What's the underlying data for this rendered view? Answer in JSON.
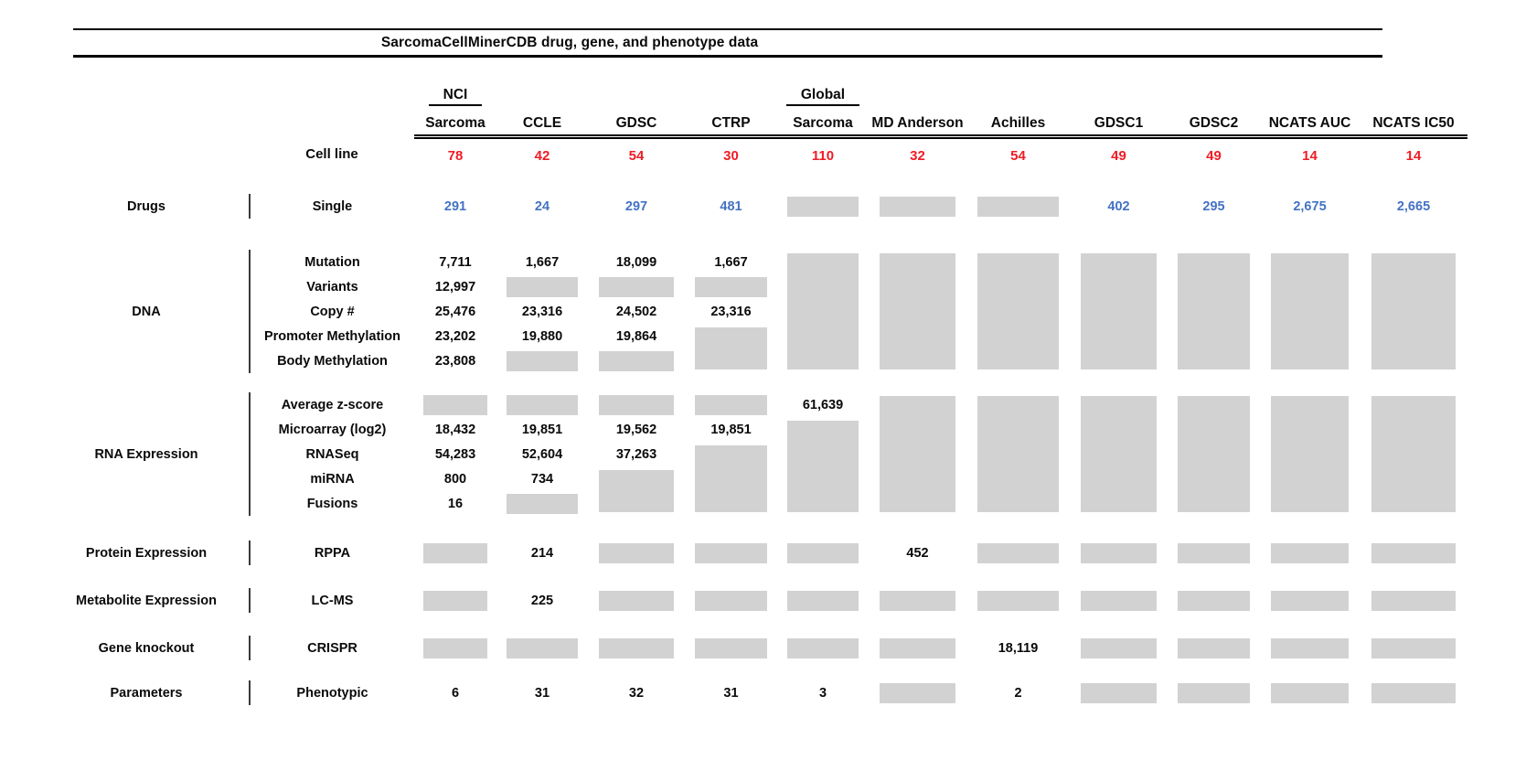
{
  "title": "SarcomaCellMinerCDB drug, gene, and phenotype data",
  "colors": {
    "red": "#ee1c25",
    "blue": "#4472c4",
    "box": "#d2d2d2",
    "rule": "#000000"
  },
  "columns": [
    {
      "over": "NCI",
      "name": "Sarcoma"
    },
    {
      "name": "CCLE"
    },
    {
      "name": "GDSC"
    },
    {
      "name": "CTRP"
    },
    {
      "over": "Global",
      "name": "Sarcoma"
    },
    {
      "name": "MD Anderson"
    },
    {
      "name": "Achilles"
    },
    {
      "name": "GDSC1"
    },
    {
      "name": "GDSC2"
    },
    {
      "name": "NCATS AUC"
    },
    {
      "name": "NCATS IC50"
    }
  ],
  "cell_line": {
    "label": "Cell line",
    "counts": [
      "78",
      "42",
      "54",
      "30",
      "110",
      "32",
      "54",
      "49",
      "49",
      "14",
      "14"
    ]
  },
  "sections": [
    {
      "category": "Drugs",
      "rows": [
        {
          "label": "Single",
          "color": "blue",
          "cells": [
            {
              "t": "v",
              "v": "291"
            },
            {
              "t": "v",
              "v": "24"
            },
            {
              "t": "v",
              "v": "297"
            },
            {
              "t": "v",
              "v": "481"
            },
            {
              "t": "b"
            },
            {
              "t": "b"
            },
            {
              "t": "b"
            },
            {
              "t": "v",
              "v": "402"
            },
            {
              "t": "v",
              "v": "295"
            },
            {
              "t": "v",
              "v": "2,675"
            },
            {
              "t": "v",
              "v": "2,665"
            }
          ]
        }
      ]
    },
    {
      "category": "DNA",
      "rows": [
        {
          "label": "Mutation",
          "cells": [
            {
              "t": "v",
              "v": "7,711"
            },
            {
              "t": "v",
              "v": "1,667"
            },
            {
              "t": "v",
              "v": "18,099"
            },
            {
              "t": "v",
              "v": "1,667"
            },
            {
              "t": "b",
              "n": 5
            },
            {
              "t": "b",
              "n": 5
            },
            {
              "t": "b",
              "n": 5
            },
            {
              "t": "b",
              "n": 5
            },
            {
              "t": "b",
              "n": 5
            },
            {
              "t": "b",
              "n": 5
            },
            {
              "t": "b",
              "n": 5
            }
          ]
        },
        {
          "label": "Variants",
          "cells": [
            {
              "t": "v",
              "v": "12,997"
            },
            {
              "t": "b"
            },
            {
              "t": "b"
            },
            {
              "t": "b"
            },
            {
              "t": "s"
            },
            {
              "t": "s"
            },
            {
              "t": "s"
            },
            {
              "t": "s"
            },
            {
              "t": "s"
            },
            {
              "t": "s"
            },
            {
              "t": "s"
            }
          ]
        },
        {
          "label": "Copy #",
          "cells": [
            {
              "t": "v",
              "v": "25,476"
            },
            {
              "t": "v",
              "v": "23,316"
            },
            {
              "t": "v",
              "v": "24,502"
            },
            {
              "t": "v",
              "v": "23,316"
            },
            {
              "t": "s"
            },
            {
              "t": "s"
            },
            {
              "t": "s"
            },
            {
              "t": "s"
            },
            {
              "t": "s"
            },
            {
              "t": "s"
            },
            {
              "t": "s"
            }
          ]
        },
        {
          "label": "Promoter Methylation",
          "cells": [
            {
              "t": "v",
              "v": "23,202"
            },
            {
              "t": "v",
              "v": "19,880"
            },
            {
              "t": "v",
              "v": "19,864"
            },
            {
              "t": "b",
              "n": 2
            },
            {
              "t": "s"
            },
            {
              "t": "s"
            },
            {
              "t": "s"
            },
            {
              "t": "s"
            },
            {
              "t": "s"
            },
            {
              "t": "s"
            },
            {
              "t": "s"
            }
          ]
        },
        {
          "label": "Body Methylation",
          "cells": [
            {
              "t": "v",
              "v": "23,808"
            },
            {
              "t": "b"
            },
            {
              "t": "b"
            },
            {
              "t": "s"
            },
            {
              "t": "s"
            },
            {
              "t": "s"
            },
            {
              "t": "s"
            },
            {
              "t": "s"
            },
            {
              "t": "s"
            },
            {
              "t": "s"
            },
            {
              "t": "s"
            }
          ]
        }
      ]
    },
    {
      "category": "RNA Expression",
      "rows": [
        {
          "label": "Average z-score",
          "cells": [
            {
              "t": "b"
            },
            {
              "t": "b"
            },
            {
              "t": "b"
            },
            {
              "t": "b"
            },
            {
              "t": "v",
              "v": "61,639"
            },
            {
              "t": "b",
              "n": 5
            },
            {
              "t": "b",
              "n": 5
            },
            {
              "t": "b",
              "n": 5
            },
            {
              "t": "b",
              "n": 5
            },
            {
              "t": "b",
              "n": 5
            },
            {
              "t": "b",
              "n": 5
            }
          ]
        },
        {
          "label": "Microarray (log2)",
          "cells": [
            {
              "t": "v",
              "v": "18,432"
            },
            {
              "t": "v",
              "v": "19,851"
            },
            {
              "t": "v",
              "v": "19,562"
            },
            {
              "t": "v",
              "v": "19,851"
            },
            {
              "t": "b",
              "n": 4
            },
            {
              "t": "s"
            },
            {
              "t": "s"
            },
            {
              "t": "s"
            },
            {
              "t": "s"
            },
            {
              "t": "s"
            },
            {
              "t": "s"
            }
          ]
        },
        {
          "label": "RNASeq",
          "cells": [
            {
              "t": "v",
              "v": "54,283"
            },
            {
              "t": "v",
              "v": "52,604"
            },
            {
              "t": "v",
              "v": "37,263"
            },
            {
              "t": "b",
              "n": 3
            },
            {
              "t": "s"
            },
            {
              "t": "s"
            },
            {
              "t": "s"
            },
            {
              "t": "s"
            },
            {
              "t": "s"
            },
            {
              "t": "s"
            },
            {
              "t": "s"
            }
          ]
        },
        {
          "label": "miRNA",
          "cells": [
            {
              "t": "v",
              "v": "800"
            },
            {
              "t": "v",
              "v": "734"
            },
            {
              "t": "b",
              "n": 2
            },
            {
              "t": "s"
            },
            {
              "t": "s"
            },
            {
              "t": "s"
            },
            {
              "t": "s"
            },
            {
              "t": "s"
            },
            {
              "t": "s"
            },
            {
              "t": "s"
            },
            {
              "t": "s"
            }
          ]
        },
        {
          "label": "Fusions",
          "cells": [
            {
              "t": "v",
              "v": "16"
            },
            {
              "t": "b"
            },
            {
              "t": "s"
            },
            {
              "t": "s"
            },
            {
              "t": "s"
            },
            {
              "t": "s"
            },
            {
              "t": "s"
            },
            {
              "t": "s"
            },
            {
              "t": "s"
            },
            {
              "t": "s"
            },
            {
              "t": "s"
            }
          ]
        }
      ]
    },
    {
      "category": "Protein Expression",
      "rows": [
        {
          "label": "RPPA",
          "cells": [
            {
              "t": "b"
            },
            {
              "t": "v",
              "v": "214"
            },
            {
              "t": "b"
            },
            {
              "t": "b"
            },
            {
              "t": "b"
            },
            {
              "t": "v",
              "v": "452"
            },
            {
              "t": "b"
            },
            {
              "t": "b"
            },
            {
              "t": "b"
            },
            {
              "t": "b"
            },
            {
              "t": "b"
            }
          ]
        }
      ]
    },
    {
      "category": "Metabolite Expression",
      "rows": [
        {
          "label": "LC-MS",
          "cells": [
            {
              "t": "b"
            },
            {
              "t": "v",
              "v": "225"
            },
            {
              "t": "b"
            },
            {
              "t": "b"
            },
            {
              "t": "b"
            },
            {
              "t": "b"
            },
            {
              "t": "b"
            },
            {
              "t": "b"
            },
            {
              "t": "b"
            },
            {
              "t": "b"
            },
            {
              "t": "b"
            }
          ]
        }
      ]
    },
    {
      "category": "Gene knockout",
      "rows": [
        {
          "label": "CRISPR",
          "cells": [
            {
              "t": "b"
            },
            {
              "t": "b"
            },
            {
              "t": "b"
            },
            {
              "t": "b"
            },
            {
              "t": "b"
            },
            {
              "t": "b"
            },
            {
              "t": "v",
              "v": "18,119"
            },
            {
              "t": "b"
            },
            {
              "t": "b"
            },
            {
              "t": "b"
            },
            {
              "t": "b"
            }
          ]
        }
      ]
    },
    {
      "category": "Parameters",
      "rows": [
        {
          "label": "Phenotypic",
          "cells": [
            {
              "t": "v",
              "v": "6"
            },
            {
              "t": "v",
              "v": "31"
            },
            {
              "t": "v",
              "v": "32"
            },
            {
              "t": "v",
              "v": "31"
            },
            {
              "t": "v",
              "v": "3"
            },
            {
              "t": "b"
            },
            {
              "t": "v",
              "v": "2"
            },
            {
              "t": "b"
            },
            {
              "t": "b"
            },
            {
              "t": "b"
            },
            {
              "t": "b"
            }
          ]
        }
      ]
    }
  ]
}
